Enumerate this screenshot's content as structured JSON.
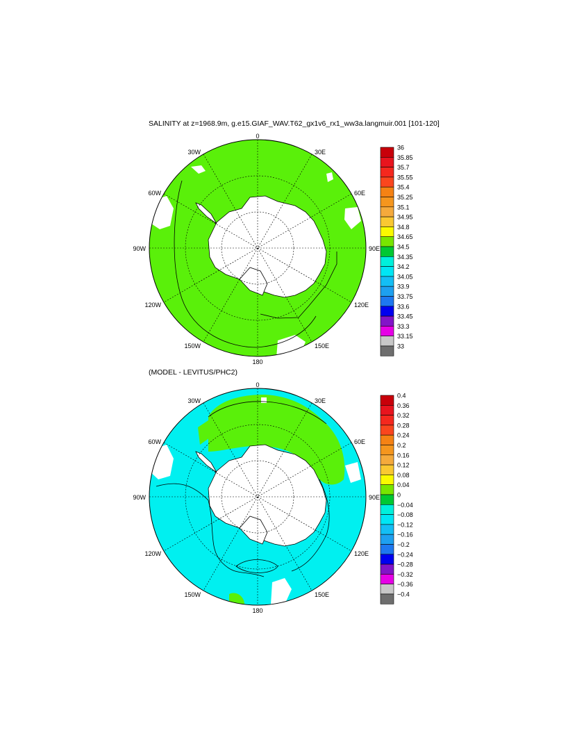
{
  "panels": [
    {
      "title": "SALINITY at z=1968.9m, g.e15.GIAF_WAV.T62_gx1v6_rx1_ww3a.langmuir.001 [101-120]",
      "colorbar_labels": [
        "36",
        "35.85",
        "35.7",
        "35.55",
        "35.4",
        "35.25",
        "35.1",
        "34.95",
        "34.8",
        "34.65",
        "34.5",
        "34.35",
        "34.2",
        "34.05",
        "33.9",
        "33.75",
        "33.6",
        "33.45",
        "33.3",
        "33.15",
        "33"
      ],
      "dominant_field": "34.65 – 34.8 (green)"
    },
    {
      "title": "(MODEL - LEVITUS/PHC2)",
      "colorbar_labels": [
        "0.4",
        "0.36",
        "0.32",
        "0.28",
        "0.24",
        "0.2",
        "0.16",
        "0.12",
        "0.08",
        "0.04",
        "0",
        "−0.04",
        "−0.08",
        "−0.12",
        "−0.16",
        "−0.2",
        "−0.24",
        "−0.28",
        "−0.32",
        "−0.36",
        "−0.4"
      ],
      "dominant_field": "0 to −0.04 (cyan) with 0.04–0.08 (green) in the Weddell/Atlantic sector"
    }
  ],
  "lon_labels": {
    "top": "0",
    "bottom": "180",
    "ul": "30W",
    "ur": "30E",
    "ml": "60W",
    "mr": "60E",
    "left": "90W",
    "right": "90E",
    "ll": "120W",
    "lr": "120E",
    "bl": "150W",
    "br": "150E"
  },
  "colors": {
    "colorbar": [
      "#c8000a",
      "#e8141e",
      "#f5281e",
      "#fa461e",
      "#f58214",
      "#f5961e",
      "#f5aa3c",
      "#fac832",
      "#fafa00",
      "#78e600",
      "#00c832",
      "#00f0dc",
      "#00e6f5",
      "#14bef5",
      "#1ea0f0",
      "#1e78f0",
      "#0000f0",
      "#8214c8",
      "#e600e6",
      "#c8c8c8",
      "#6e6e6e"
    ],
    "green_field": "#5af00a",
    "cyan_field": "#00f0f0",
    "land": "#ffffff"
  },
  "projection": "south-polar stereographic"
}
